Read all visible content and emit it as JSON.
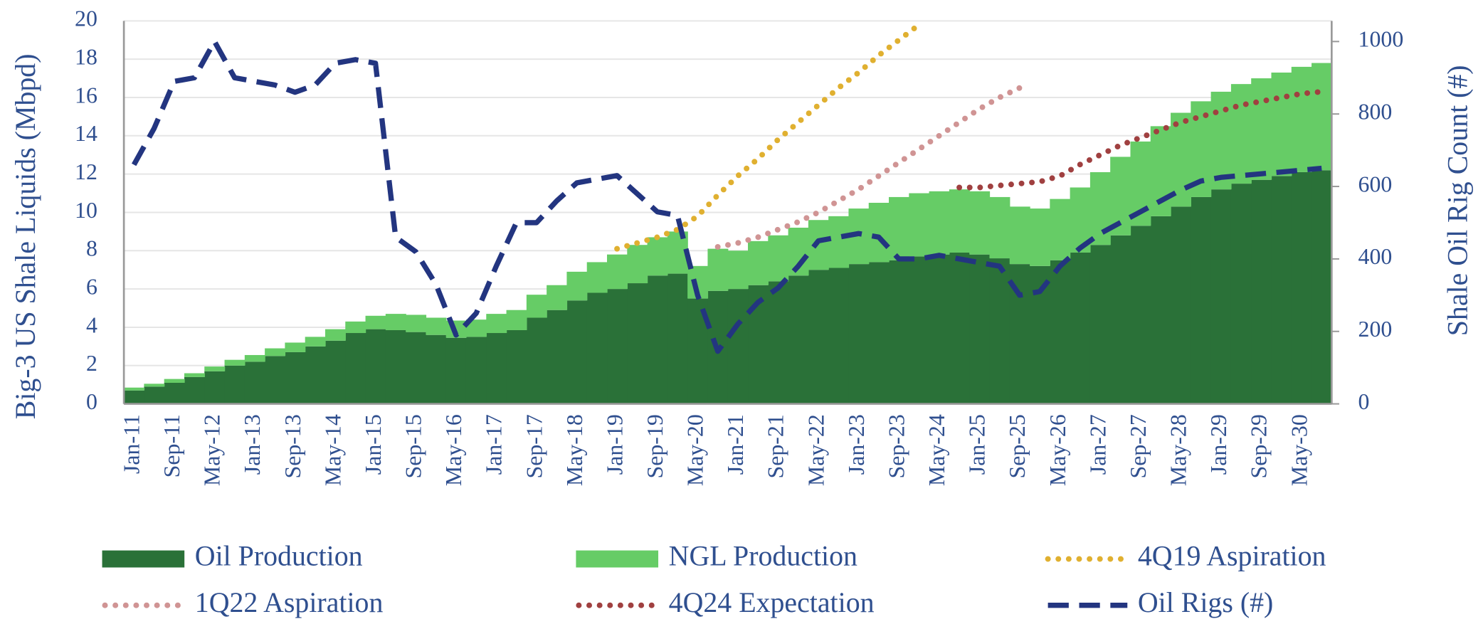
{
  "chart_data": {
    "type": "bar",
    "stacked": true,
    "y_label": "Big-3 US Shale Liquids (Mbpd)",
    "y2_label": "Shale Oil Rig Count (#)",
    "categories": [
      "Jan-11",
      null,
      "Sep-11",
      null,
      "May-12",
      null,
      "Jan-13",
      null,
      "Sep-13",
      null,
      "May-14",
      null,
      "Jan-15",
      null,
      "Sep-15",
      null,
      "May-16",
      null,
      "Jan-17",
      null,
      "Sep-17",
      null,
      "May-18",
      null,
      "Jan-19",
      null,
      "Sep-19",
      null,
      "May-20",
      null,
      "Jan-21",
      null,
      "Sep-21",
      null,
      "May-22",
      null,
      "Jan-23",
      null,
      "Sep-23",
      null,
      "May-24",
      null,
      "Jan-25",
      null,
      "Sep-25",
      null,
      "May-26",
      null,
      "Jan-27",
      null,
      "Sep-27",
      null,
      "May-28",
      null,
      "Jan-29",
      null,
      "Sep-29",
      null,
      "May-30",
      null
    ],
    "ylim": [
      0,
      20
    ],
    "yticks": [
      0,
      2,
      4,
      6,
      8,
      10,
      12,
      14,
      16,
      18,
      20
    ],
    "y2lim": [
      0,
      1057
    ],
    "y2ticks": [
      0,
      200,
      400,
      600,
      800,
      1000
    ],
    "grid": true,
    "series": [
      {
        "name": "Oil Production",
        "style": "bar",
        "color": "#2a7138",
        "values": [
          0.7,
          0.9,
          1.1,
          1.4,
          1.7,
          2.0,
          2.2,
          2.5,
          2.7,
          3.0,
          3.3,
          3.7,
          3.9,
          3.85,
          3.75,
          3.6,
          3.45,
          3.5,
          3.7,
          3.85,
          4.5,
          4.9,
          5.4,
          5.8,
          6.0,
          6.3,
          6.7,
          6.8,
          5.5,
          5.9,
          6.0,
          6.2,
          6.4,
          6.7,
          7.0,
          7.1,
          7.3,
          7.4,
          7.5,
          7.7,
          7.8,
          7.9,
          7.8,
          7.6,
          7.3,
          7.2,
          7.5,
          7.9,
          8.3,
          8.8,
          9.3,
          9.8,
          10.3,
          10.8,
          11.2,
          11.5,
          11.7,
          11.9,
          12.1,
          12.2
        ]
      },
      {
        "name": "NGL Production",
        "style": "bar",
        "color": "#66cc66",
        "values": [
          0.15,
          0.15,
          0.2,
          0.2,
          0.25,
          0.3,
          0.35,
          0.4,
          0.5,
          0.5,
          0.6,
          0.6,
          0.7,
          0.85,
          0.9,
          0.9,
          0.9,
          0.9,
          1.0,
          1.05,
          1.2,
          1.3,
          1.5,
          1.6,
          1.8,
          2.0,
          2.0,
          2.2,
          1.7,
          2.2,
          2.0,
          2.3,
          2.4,
          2.5,
          2.6,
          2.7,
          2.9,
          3.1,
          3.3,
          3.3,
          3.3,
          3.3,
          3.3,
          3.2,
          3.0,
          3.0,
          3.2,
          3.4,
          3.8,
          4.1,
          4.4,
          4.7,
          4.9,
          5.0,
          5.1,
          5.2,
          5.3,
          5.4,
          5.5,
          5.6
        ]
      },
      {
        "name": "4Q19 Aspiration",
        "style": "dotted",
        "color": "#e0b030",
        "values": [
          null,
          null,
          null,
          null,
          null,
          null,
          null,
          null,
          null,
          null,
          null,
          null,
          null,
          null,
          null,
          null,
          null,
          null,
          null,
          null,
          null,
          null,
          null,
          null,
          8.1,
          8.4,
          8.7,
          9.1,
          9.8,
          10.9,
          11.9,
          12.8,
          13.8,
          14.7,
          15.6,
          16.5,
          17.3,
          18.2,
          19.0,
          19.8,
          null,
          null,
          null,
          null,
          null,
          null,
          null,
          null,
          null,
          null,
          null,
          null,
          null,
          null,
          null,
          null,
          null,
          null,
          null,
          null
        ]
      },
      {
        "name": "1Q22 Aspiration",
        "style": "dotted",
        "color": "#d09494",
        "values": [
          null,
          null,
          null,
          null,
          null,
          null,
          null,
          null,
          null,
          null,
          null,
          null,
          null,
          null,
          null,
          null,
          null,
          null,
          null,
          null,
          null,
          null,
          null,
          null,
          null,
          null,
          null,
          null,
          null,
          8.2,
          8.4,
          8.7,
          9.1,
          9.5,
          10.0,
          10.6,
          11.2,
          11.9,
          12.6,
          13.3,
          14.0,
          14.7,
          15.4,
          16.0,
          16.5,
          null,
          null,
          null,
          null,
          null,
          null,
          null,
          null,
          null,
          null,
          null,
          null,
          null,
          null,
          null
        ]
      },
      {
        "name": "4Q24 Expectation",
        "style": "dotted",
        "color": "#a04040",
        "values": [
          null,
          null,
          null,
          null,
          null,
          null,
          null,
          null,
          null,
          null,
          null,
          null,
          null,
          null,
          null,
          null,
          null,
          null,
          null,
          null,
          null,
          null,
          null,
          null,
          null,
          null,
          null,
          null,
          null,
          null,
          null,
          null,
          null,
          null,
          null,
          null,
          null,
          null,
          null,
          null,
          null,
          11.3,
          11.3,
          11.4,
          11.5,
          11.6,
          11.9,
          12.5,
          13.0,
          13.5,
          13.9,
          14.3,
          14.7,
          15.0,
          15.3,
          15.6,
          15.8,
          16.0,
          16.2,
          16.3
        ]
      },
      {
        "name": "Oil Rigs (#)",
        "style": "dashed",
        "axis": "y2",
        "color": "#233580",
        "values": [
          660,
          760,
          890,
          900,
          1000,
          900,
          890,
          880,
          860,
          880,
          940,
          950,
          940,
          460,
          420,
          330,
          190,
          250,
          380,
          500,
          500,
          560,
          610,
          620,
          630,
          580,
          530,
          520,
          300,
          145,
          220,
          280,
          320,
          380,
          450,
          460,
          470,
          460,
          400,
          400,
          410,
          400,
          390,
          380,
          300,
          310,
          380,
          430,
          470,
          500,
          530,
          560,
          590,
          615,
          625,
          630,
          635,
          640,
          645,
          650
        ]
      }
    ]
  }
}
